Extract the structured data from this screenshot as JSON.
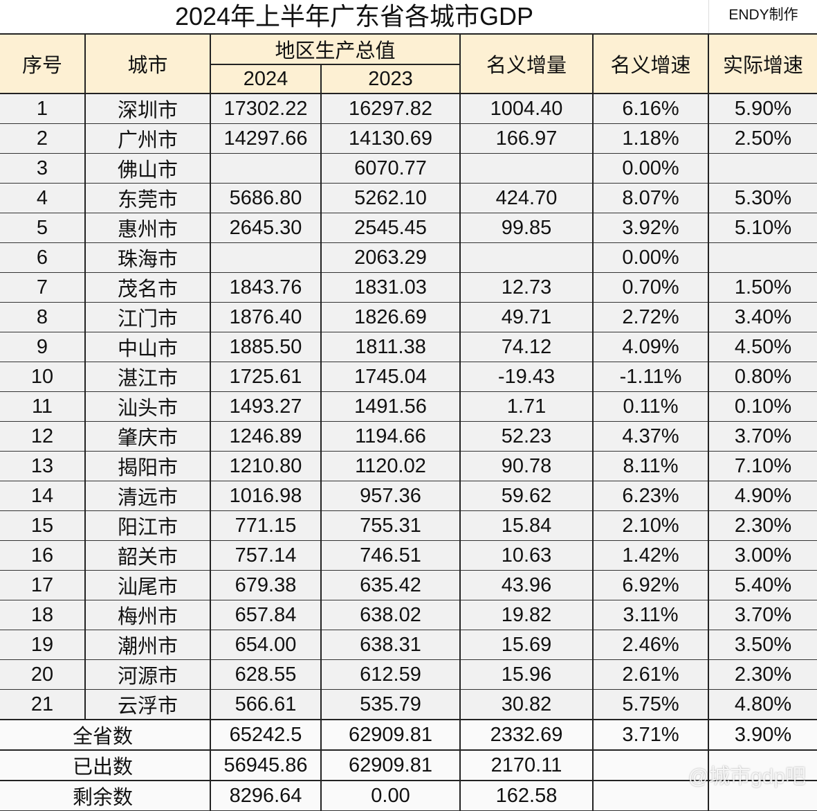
{
  "title": "2024年上半年广东省各城市GDP",
  "credit": "ENDY制作",
  "headers": {
    "index": "序号",
    "city": "城市",
    "gdp": "地区生产总值",
    "y2024": "2024",
    "y2023": "2023",
    "nominal_increase": "名义增量",
    "nominal_growth": "名义增速",
    "real_growth": "实际增速"
  },
  "rows": [
    [
      "1",
      "深圳市",
      "17302.22",
      "16297.82",
      "1004.40",
      "6.16%",
      "5.90%"
    ],
    [
      "2",
      "广州市",
      "14297.66",
      "14130.69",
      "166.97",
      "1.18%",
      "2.50%"
    ],
    [
      "3",
      "佛山市",
      "",
      "6070.77",
      "",
      "0.00%",
      ""
    ],
    [
      "4",
      "东莞市",
      "5686.80",
      "5262.10",
      "424.70",
      "8.07%",
      "5.30%"
    ],
    [
      "5",
      "惠州市",
      "2645.30",
      "2545.45",
      "99.85",
      "3.92%",
      "5.10%"
    ],
    [
      "6",
      "珠海市",
      "",
      "2063.29",
      "",
      "0.00%",
      ""
    ],
    [
      "7",
      "茂名市",
      "1843.76",
      "1831.03",
      "12.73",
      "0.70%",
      "1.50%"
    ],
    [
      "8",
      "江门市",
      "1876.40",
      "1826.69",
      "49.71",
      "2.72%",
      "3.40%"
    ],
    [
      "9",
      "中山市",
      "1885.50",
      "1811.38",
      "74.12",
      "4.09%",
      "4.50%"
    ],
    [
      "10",
      "湛江市",
      "1725.61",
      "1745.04",
      "-19.43",
      "-1.11%",
      "0.80%"
    ],
    [
      "11",
      "汕头市",
      "1493.27",
      "1491.56",
      "1.71",
      "0.11%",
      "0.10%"
    ],
    [
      "12",
      "肇庆市",
      "1246.89",
      "1194.66",
      "52.23",
      "4.37%",
      "3.70%"
    ],
    [
      "13",
      "揭阳市",
      "1210.80",
      "1120.02",
      "90.78",
      "8.11%",
      "7.10%"
    ],
    [
      "14",
      "清远市",
      "1016.98",
      "957.36",
      "59.62",
      "6.23%",
      "4.90%"
    ],
    [
      "15",
      "阳江市",
      "771.15",
      "755.31",
      "15.84",
      "2.10%",
      "2.30%"
    ],
    [
      "16",
      "韶关市",
      "757.14",
      "746.51",
      "10.63",
      "1.42%",
      "3.00%"
    ],
    [
      "17",
      "汕尾市",
      "679.38",
      "635.42",
      "43.96",
      "6.92%",
      "5.40%"
    ],
    [
      "18",
      "梅州市",
      "657.84",
      "638.02",
      "19.82",
      "3.11%",
      "3.70%"
    ],
    [
      "19",
      "潮州市",
      "654.00",
      "638.31",
      "15.69",
      "2.46%",
      "3.50%"
    ],
    [
      "20",
      "河源市",
      "628.55",
      "612.59",
      "15.96",
      "2.61%",
      "2.30%"
    ],
    [
      "21",
      "云浮市",
      "566.61",
      "535.79",
      "30.82",
      "5.75%",
      "4.80%"
    ]
  ],
  "summary": [
    [
      "全省数",
      "65242.5",
      "62909.81",
      "2332.69",
      "3.71%",
      "3.90%"
    ],
    [
      "已出数",
      "56945.86",
      "62909.81",
      "2170.11",
      "",
      ""
    ],
    [
      "剩余数",
      "8296.64",
      "0.00",
      "162.58",
      "",
      ""
    ]
  ],
  "watermark": "@城市gdp吧",
  "colors": {
    "header_bg": "#fdf0d3",
    "row_bg": "#f1f1f1",
    "border": "#222222"
  }
}
